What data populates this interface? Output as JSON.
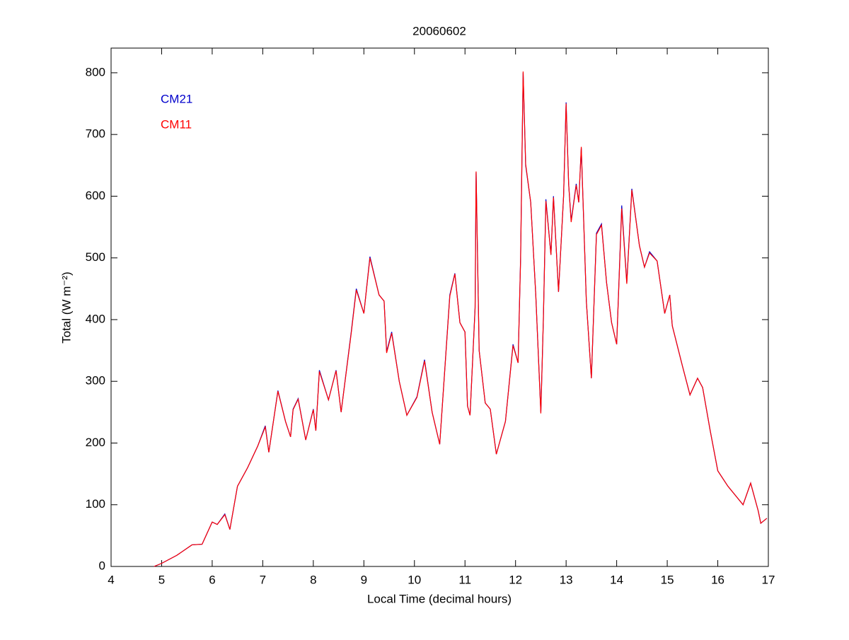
{
  "chart_data": {
    "type": "line",
    "title": "20060602",
    "x_label": "Local Time (decimal hours)",
    "y_label": "Total (W m⁻²)",
    "x": [
      4.85,
      5.0,
      5.3,
      5.6,
      5.8,
      6.0,
      6.1,
      6.25,
      6.35,
      6.5,
      6.7,
      6.9,
      7.05,
      7.12,
      7.3,
      7.45,
      7.55,
      7.6,
      7.7,
      7.85,
      8.0,
      8.05,
      8.12,
      8.3,
      8.45,
      8.55,
      8.75,
      8.85,
      9.0,
      9.12,
      9.3,
      9.4,
      9.45,
      9.55,
      9.7,
      9.85,
      10.05,
      10.2,
      10.35,
      10.5,
      10.7,
      10.8,
      10.9,
      11.0,
      11.05,
      11.1,
      11.2,
      11.22,
      11.28,
      11.4,
      11.5,
      11.62,
      11.8,
      11.95,
      12.05,
      12.1,
      12.15,
      12.2,
      12.3,
      12.4,
      12.5,
      12.55,
      12.6,
      12.7,
      12.75,
      12.85,
      12.95,
      13.0,
      13.05,
      13.1,
      13.2,
      13.25,
      13.3,
      13.4,
      13.5,
      13.6,
      13.7,
      13.8,
      13.9,
      14.0,
      14.1,
      14.2,
      14.3,
      14.45,
      14.55,
      14.65,
      14.8,
      14.95,
      15.05,
      15.1,
      15.3,
      15.45,
      15.6,
      15.7,
      15.85,
      16.0,
      16.2,
      16.35,
      16.5,
      16.65,
      16.8,
      16.85,
      16.97
    ],
    "series": [
      {
        "name": "CM21",
        "color": "#0000cc",
        "values": [
          0,
          5,
          18,
          35,
          36,
          72,
          68,
          85,
          60,
          130,
          160,
          195,
          228,
          185,
          285,
          235,
          210,
          255,
          272,
          205,
          255,
          220,
          318,
          270,
          318,
          250,
          380,
          450,
          410,
          502,
          440,
          430,
          348,
          380,
          300,
          245,
          275,
          335,
          250,
          198,
          440,
          475,
          395,
          380,
          260,
          245,
          420,
          638,
          350,
          265,
          255,
          182,
          235,
          360,
          330,
          500,
          800,
          650,
          590,
          440,
          250,
          400,
          595,
          505,
          600,
          445,
          600,
          752,
          620,
          560,
          620,
          590,
          678,
          430,
          305,
          540,
          555,
          460,
          395,
          360,
          585,
          460,
          612,
          520,
          485,
          510,
          495,
          410,
          440,
          390,
          325,
          278,
          305,
          290,
          220,
          155,
          130,
          115,
          100,
          135,
          90,
          70,
          78
        ]
      },
      {
        "name": "CM11",
        "color": "#ff0000",
        "values": [
          0,
          5,
          18,
          35,
          36,
          72,
          68,
          84,
          60,
          130,
          160,
          195,
          226,
          185,
          284,
          235,
          210,
          254,
          271,
          205,
          254,
          220,
          316,
          270,
          317,
          250,
          378,
          448,
          410,
          500,
          440,
          430,
          346,
          378,
          300,
          245,
          274,
          333,
          250,
          198,
          438,
          474,
          395,
          380,
          260,
          245,
          418,
          640,
          350,
          265,
          255,
          182,
          235,
          358,
          330,
          498,
          802,
          652,
          590,
          440,
          248,
          400,
          592,
          505,
          598,
          445,
          600,
          750,
          620,
          558,
          618,
          590,
          680,
          430,
          305,
          538,
          553,
          460,
          395,
          360,
          580,
          458,
          610,
          520,
          485,
          508,
          495,
          410,
          440,
          390,
          325,
          278,
          305,
          290,
          220,
          155,
          130,
          115,
          100,
          135,
          90,
          70,
          78
        ]
      }
    ],
    "xlim": [
      4,
      17
    ],
    "ylim": [
      0,
      840
    ],
    "xticks": [
      4,
      5,
      6,
      7,
      8,
      9,
      10,
      11,
      12,
      13,
      14,
      15,
      16,
      17
    ],
    "yticks": [
      0,
      100,
      200,
      300,
      400,
      500,
      600,
      700,
      800
    ],
    "legend": "upper left",
    "grid": false
  }
}
